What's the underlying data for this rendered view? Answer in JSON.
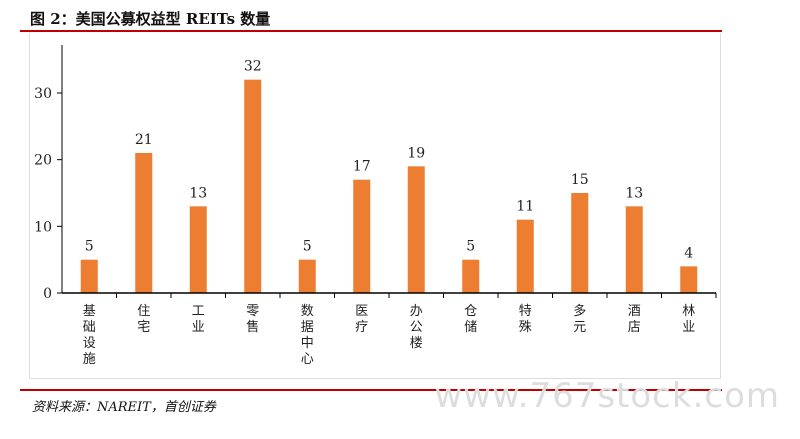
{
  "title": "图 2：美国公募权益型 REITs 数量",
  "source": "资料来源：NAREIT，首创证券",
  "watermark": "www.767stock.com",
  "chart_data": {
    "type": "bar",
    "categories": [
      "基础设施",
      "住宅",
      "工业",
      "零售",
      "数据中心",
      "医疗",
      "办公楼",
      "仓储",
      "特殊",
      "多元",
      "酒店",
      "林业"
    ],
    "values": [
      5,
      21,
      13,
      32,
      5,
      17,
      19,
      5,
      11,
      15,
      13,
      4
    ],
    "ylim": [
      0,
      35
    ],
    "yticks": [
      0,
      10,
      20,
      30
    ],
    "grid": false,
    "color": "#ed7d31"
  }
}
